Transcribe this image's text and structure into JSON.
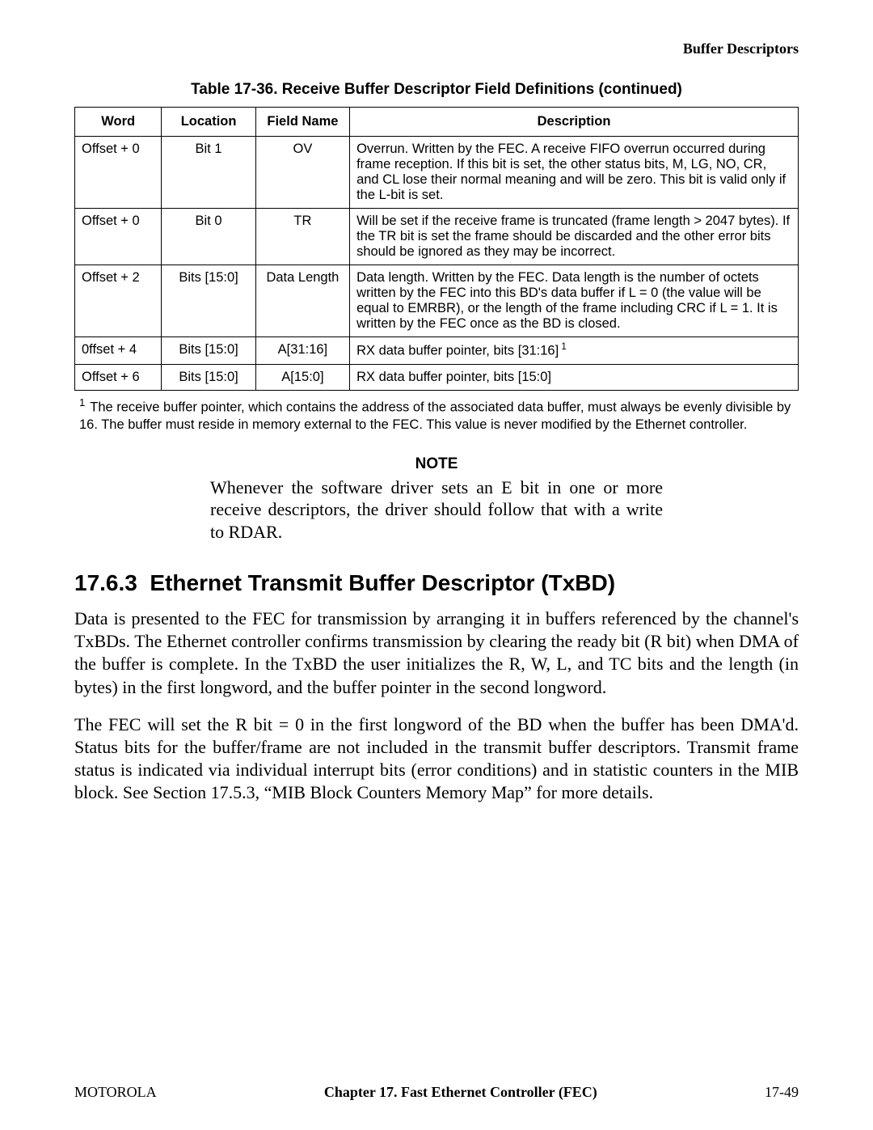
{
  "running_head": "Buffer Descriptors",
  "table": {
    "caption": "Table 17-36. Receive Buffer Descriptor Field Definitions (continued)",
    "headers": [
      "Word",
      "Location",
      "Field Name",
      "Description"
    ],
    "rows": [
      {
        "word": "Offset + 0",
        "location": "Bit 1",
        "field": "OV",
        "desc": "Overrun. Written by the FEC. A receive FIFO overrun occurred during frame reception. If this bit is set, the other status bits, M, LG, NO, CR, and CL lose their normal meaning and will be zero. This bit is valid only if the L-bit is set."
      },
      {
        "word": "Offset + 0",
        "location": "Bit 0",
        "field": "TR",
        "desc": "Will be set if the receive frame is truncated (frame length > 2047 bytes). If the TR bit is set the frame should be discarded and the other error bits should be ignored as they may be incorrect."
      },
      {
        "word": "Offset + 2",
        "location": "Bits [15:0]",
        "field": "Data Length",
        "desc": "Data length. Written by the FEC. Data length is the number of octets written by the FEC into this BD's data buffer if L = 0 (the value will be equal to EMRBR), or the length of the frame including CRC if L = 1. It is written by the FEC once as the BD is closed."
      },
      {
        "word": "0ffset + 4",
        "location": "Bits [15:0]",
        "field": "A[31:16]",
        "desc": "RX data buffer pointer, bits [31:16]",
        "sup": "1",
        "tall": true
      },
      {
        "word": "Offset + 6",
        "location": "Bits [15:0]",
        "field": "A[15:0]",
        "desc": "RX data buffer pointer, bits [15:0]"
      }
    ]
  },
  "footnote": {
    "marker": "1",
    "text": "The receive buffer pointer, which contains the address of the associated data buffer, must always be evenly divisible by 16. The buffer must reside in memory external to the FEC. This value is never modified by the Ethernet controller."
  },
  "note": {
    "heading": "NOTE",
    "body": "Whenever the software driver sets an E bit in one or more receive descriptors, the driver should follow that with a write to RDAR."
  },
  "section": {
    "number": "17.6.3",
    "title": "Ethernet Transmit Buffer Descriptor (TxBD)",
    "paragraphs": [
      "Data is presented to the FEC for transmission by arranging it in buffers referenced by the channel's TxBDs. The Ethernet controller confirms transmission by clearing the ready bit (R bit) when DMA of the buffer is complete. In the TxBD the user initializes the R, W, L, and TC bits and the length (in bytes) in the first longword, and the buffer pointer in the second longword.",
      "The FEC will set the R bit = 0 in the first longword of the BD when the buffer has been DMA'd. Status bits for the buffer/frame are not included in the transmit buffer descriptors. Transmit frame status is indicated via individual interrupt bits (error conditions) and in statistic counters in the MIB block. See Section 17.5.3, “MIB Block Counters Memory Map” for more details."
    ]
  },
  "footer": {
    "left": "MOTOROLA",
    "center": "Chapter 17.  Fast Ethernet Controller (FEC)",
    "right": "17-49"
  }
}
